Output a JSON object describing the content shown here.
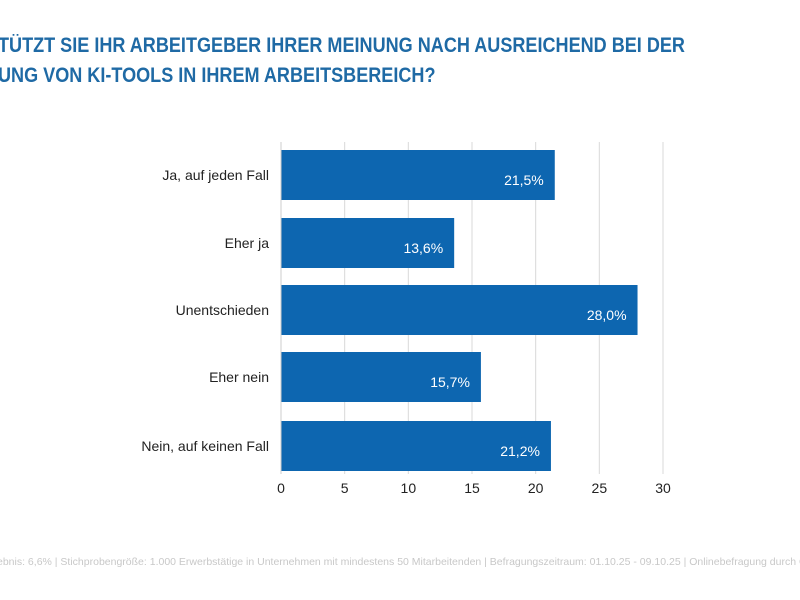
{
  "title_lines": [
    "TÜTZT SIE IHR ARBEITGEBER IHRER MEINUNG NACH AUSREICHEND BEI DER",
    "UNG VON KI-TOOLS IN IHREM ARBEITSBEREICH?"
  ],
  "footer": "ebnis: 6,6% | Stichprobengröße: 1.000 Erwerbstätige in Unternehmen mit mindestens 50 Mitarbeitenden | Befragungszeitraum: 01.10.25 - 09.10.25 | Onlinebefragung durch Civey",
  "colors": {
    "bar": "#0d66b0",
    "title": "#1f6aa5",
    "grid": "#d9d9d9"
  },
  "chart_data": {
    "type": "bar",
    "orientation": "horizontal",
    "categories": [
      "Ja, auf jeden Fall",
      "Eher ja",
      "Unentschieden",
      "Eher nein",
      "Nein, auf keinen Fall"
    ],
    "values": [
      21.5,
      13.6,
      28.0,
      15.7,
      21.2
    ],
    "value_labels": [
      "21,5%",
      "13,6%",
      "28,0%",
      "15,7%",
      "21,2%"
    ],
    "xlim": [
      0,
      30
    ],
    "xticks": [
      "0",
      "5",
      "10",
      "15",
      "20",
      "25",
      "30"
    ],
    "grid": true
  }
}
